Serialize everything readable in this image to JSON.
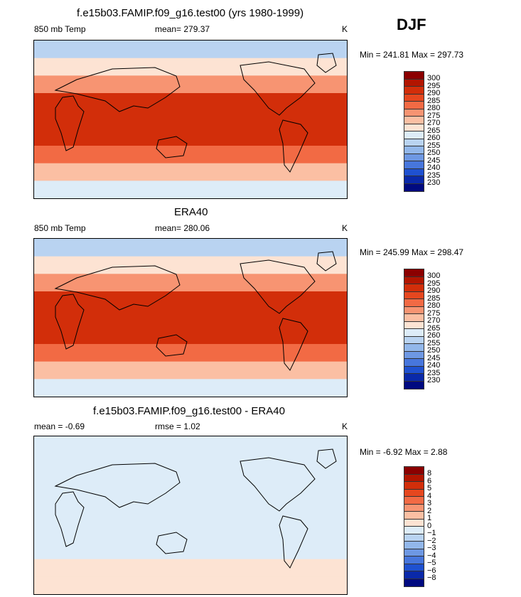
{
  "season": "DJF",
  "chart_data": [
    {
      "type": "heatmap",
      "title": "f.e15b03.FAMIP.f09_g16.test00 (yrs 1980-1999)",
      "left_label": "850 mb Temp",
      "center_label": "mean= 279.37",
      "units": "K",
      "min_max": "Min = 241.81  Max = 297.73",
      "levels": [
        "300",
        "295",
        "290",
        "285",
        "280",
        "275",
        "270",
        "265",
        "260",
        "255",
        "250",
        "245",
        "240",
        "235",
        "230"
      ],
      "colors": [
        "#8b0000",
        "#b21500",
        "#d22e0a",
        "#e6471f",
        "#f26a44",
        "#f79472",
        "#fbbfa3",
        "#fde3d3",
        "#ddecf8",
        "#b9d3f1",
        "#92b7ea",
        "#6e98e3",
        "#4776dc",
        "#1f51d0",
        "#0a29a9",
        "#000a80"
      ],
      "bands": [
        {
          "lat": "80N",
          "level": "258"
        },
        {
          "lat": "60N",
          "level": "266"
        },
        {
          "lat": "40N",
          "level": "275"
        },
        {
          "lat": "20N",
          "level": "290"
        },
        {
          "lat": "EQ",
          "level": "294"
        },
        {
          "lat": "20S",
          "level": "292"
        },
        {
          "lat": "40S",
          "level": "282"
        },
        {
          "lat": "60S",
          "level": "272"
        },
        {
          "lat": "80S",
          "level": "262"
        }
      ]
    },
    {
      "type": "heatmap",
      "title": "ERA40",
      "left_label": "850 mb Temp",
      "center_label": "mean= 280.06",
      "units": "K",
      "min_max": "Min = 245.99  Max = 298.47",
      "levels": [
        "300",
        "295",
        "290",
        "285",
        "280",
        "275",
        "270",
        "265",
        "260",
        "255",
        "250",
        "245",
        "240",
        "235",
        "230"
      ],
      "colors": [
        "#8b0000",
        "#b21500",
        "#d22e0a",
        "#e6471f",
        "#f26a44",
        "#f79472",
        "#fbbfa3",
        "#fde3d3",
        "#ddecf8",
        "#b9d3f1",
        "#92b7ea",
        "#6e98e3",
        "#4776dc",
        "#1f51d0",
        "#0a29a9",
        "#000a80"
      ],
      "bands": [
        {
          "lat": "80N",
          "level": "257"
        },
        {
          "lat": "60N",
          "level": "265"
        },
        {
          "lat": "40N",
          "level": "276"
        },
        {
          "lat": "20N",
          "level": "290"
        },
        {
          "lat": "EQ",
          "level": "294"
        },
        {
          "lat": "20S",
          "level": "292"
        },
        {
          "lat": "40S",
          "level": "282"
        },
        {
          "lat": "60S",
          "level": "272"
        },
        {
          "lat": "80S",
          "level": "263"
        }
      ]
    },
    {
      "type": "heatmap",
      "title": "f.e15b03.FAMIP.f09_g16.test00 - ERA40",
      "left_label": "mean =   -0.69",
      "center_label": "rmse =    1.02",
      "units": "K",
      "min_max": "Min =  -6.92  Max =    2.88",
      "levels": [
        "8",
        "6",
        "5",
        "4",
        "3",
        "2",
        "1",
        "0",
        "−1",
        "−2",
        "−3",
        "−4",
        "−5",
        "−6",
        "−8"
      ],
      "colors": [
        "#8b0000",
        "#b21500",
        "#d22e0a",
        "#e6471f",
        "#f26a44",
        "#f79472",
        "#fbbfa3",
        "#fde3d3",
        "#ddecf8",
        "#b9d3f1",
        "#92b7ea",
        "#6e98e3",
        "#4776dc",
        "#1f51d0",
        "#0a29a9",
        "#000a80"
      ],
      "bands": [
        {
          "lat": "80N",
          "level": "-1"
        },
        {
          "lat": "60N",
          "level": "-1"
        },
        {
          "lat": "40N",
          "level": "-1"
        },
        {
          "lat": "20N",
          "level": "-1"
        },
        {
          "lat": "EQ",
          "level": "-1"
        },
        {
          "lat": "20S",
          "level": "-1"
        },
        {
          "lat": "40S",
          "level": "-1"
        },
        {
          "lat": "60S",
          "level": "0"
        },
        {
          "lat": "80S",
          "level": "0"
        }
      ]
    }
  ]
}
